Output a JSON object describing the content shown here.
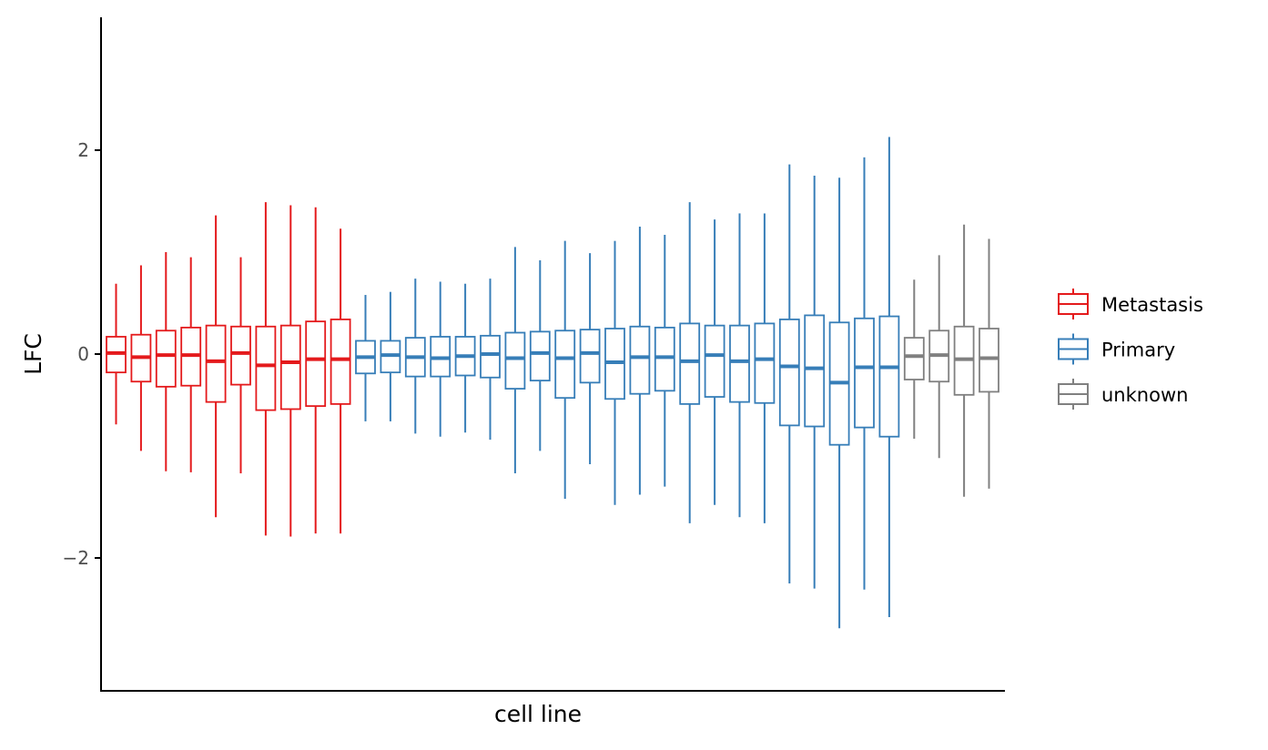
{
  "chart_data": {
    "type": "box",
    "title": "",
    "xlabel": "cell line",
    "ylabel": "LFC",
    "ylim": [
      -3.3,
      3.3
    ],
    "yticks": [
      -2,
      0,
      2
    ],
    "ytick_labels": [
      "−2",
      "0",
      "2"
    ],
    "x_tick_labels": false,
    "grid": false,
    "legend": {
      "position": "right",
      "entries": [
        {
          "label": "Metastasis",
          "color": "#e41a1c"
        },
        {
          "label": "Primary",
          "color": "#377eb8"
        },
        {
          "label": "unknown",
          "color": "#808080"
        }
      ]
    },
    "series": [
      {
        "group": "Metastasis",
        "boxes": [
          {
            "wlo": -0.69,
            "q1": -0.18,
            "med": 0.01,
            "q3": 0.17,
            "whi": 0.69
          },
          {
            "wlo": -0.95,
            "q1": -0.27,
            "med": -0.03,
            "q3": 0.19,
            "whi": 0.87
          },
          {
            "wlo": -1.15,
            "q1": -0.32,
            "med": -0.01,
            "q3": 0.23,
            "whi": 1.0
          },
          {
            "wlo": -1.16,
            "q1": -0.31,
            "med": -0.01,
            "q3": 0.26,
            "whi": 0.95
          },
          {
            "wlo": -1.6,
            "q1": -0.47,
            "med": -0.07,
            "q3": 0.28,
            "whi": 1.36
          },
          {
            "wlo": -1.17,
            "q1": -0.3,
            "med": 0.01,
            "q3": 0.27,
            "whi": 0.95
          },
          {
            "wlo": -1.78,
            "q1": -0.55,
            "med": -0.11,
            "q3": 0.27,
            "whi": 1.49
          },
          {
            "wlo": -1.79,
            "q1": -0.54,
            "med": -0.08,
            "q3": 0.28,
            "whi": 1.46
          },
          {
            "wlo": -1.76,
            "q1": -0.51,
            "med": -0.05,
            "q3": 0.32,
            "whi": 1.44
          },
          {
            "wlo": -1.76,
            "q1": -0.49,
            "med": -0.05,
            "q3": 0.34,
            "whi": 1.23
          }
        ]
      },
      {
        "group": "Primary",
        "boxes": [
          {
            "wlo": -0.66,
            "q1": -0.19,
            "med": -0.03,
            "q3": 0.13,
            "whi": 0.58
          },
          {
            "wlo": -0.66,
            "q1": -0.18,
            "med": -0.01,
            "q3": 0.13,
            "whi": 0.61
          },
          {
            "wlo": -0.78,
            "q1": -0.22,
            "med": -0.03,
            "q3": 0.16,
            "whi": 0.74
          },
          {
            "wlo": -0.81,
            "q1": -0.22,
            "med": -0.04,
            "q3": 0.17,
            "whi": 0.71
          },
          {
            "wlo": -0.77,
            "q1": -0.21,
            "med": -0.02,
            "q3": 0.17,
            "whi": 0.69
          },
          {
            "wlo": -0.84,
            "q1": -0.23,
            "med": 0.0,
            "q3": 0.18,
            "whi": 0.74
          },
          {
            "wlo": -1.17,
            "q1": -0.34,
            "med": -0.04,
            "q3": 0.21,
            "whi": 1.05
          },
          {
            "wlo": -0.95,
            "q1": -0.26,
            "med": 0.01,
            "q3": 0.22,
            "whi": 0.92
          },
          {
            "wlo": -1.42,
            "q1": -0.43,
            "med": -0.04,
            "q3": 0.23,
            "whi": 1.11
          },
          {
            "wlo": -1.08,
            "q1": -0.28,
            "med": 0.01,
            "q3": 0.24,
            "whi": 0.99
          },
          {
            "wlo": -1.48,
            "q1": -0.44,
            "med": -0.08,
            "q3": 0.25,
            "whi": 1.11
          },
          {
            "wlo": -1.38,
            "q1": -0.39,
            "med": -0.03,
            "q3": 0.27,
            "whi": 1.25
          },
          {
            "wlo": -1.3,
            "q1": -0.36,
            "med": -0.03,
            "q3": 0.26,
            "whi": 1.17
          },
          {
            "wlo": -1.66,
            "q1": -0.49,
            "med": -0.07,
            "q3": 0.3,
            "whi": 1.49
          },
          {
            "wlo": -1.48,
            "q1": -0.42,
            "med": -0.01,
            "q3": 0.28,
            "whi": 1.32
          },
          {
            "wlo": -1.6,
            "q1": -0.47,
            "med": -0.07,
            "q3": 0.28,
            "whi": 1.38
          },
          {
            "wlo": -1.66,
            "q1": -0.48,
            "med": -0.05,
            "q3": 0.3,
            "whi": 1.38
          },
          {
            "wlo": -2.25,
            "q1": -0.7,
            "med": -0.12,
            "q3": 0.34,
            "whi": 1.86
          },
          {
            "wlo": -2.3,
            "q1": -0.71,
            "med": -0.14,
            "q3": 0.38,
            "whi": 1.75
          },
          {
            "wlo": -2.69,
            "q1": -0.89,
            "med": -0.28,
            "q3": 0.31,
            "whi": 1.73
          },
          {
            "wlo": -2.31,
            "q1": -0.72,
            "med": -0.13,
            "q3": 0.35,
            "whi": 1.93
          },
          {
            "wlo": -2.58,
            "q1": -0.81,
            "med": -0.13,
            "q3": 0.37,
            "whi": 2.13
          }
        ]
      },
      {
        "group": "unknown",
        "boxes": [
          {
            "wlo": -0.83,
            "q1": -0.25,
            "med": -0.02,
            "q3": 0.16,
            "whi": 0.73
          },
          {
            "wlo": -1.02,
            "q1": -0.27,
            "med": -0.01,
            "q3": 0.23,
            "whi": 0.97
          },
          {
            "wlo": -1.4,
            "q1": -0.4,
            "med": -0.05,
            "q3": 0.27,
            "whi": 1.27
          },
          {
            "wlo": -1.32,
            "q1": -0.37,
            "med": -0.04,
            "q3": 0.25,
            "whi": 1.13
          }
        ]
      }
    ]
  }
}
